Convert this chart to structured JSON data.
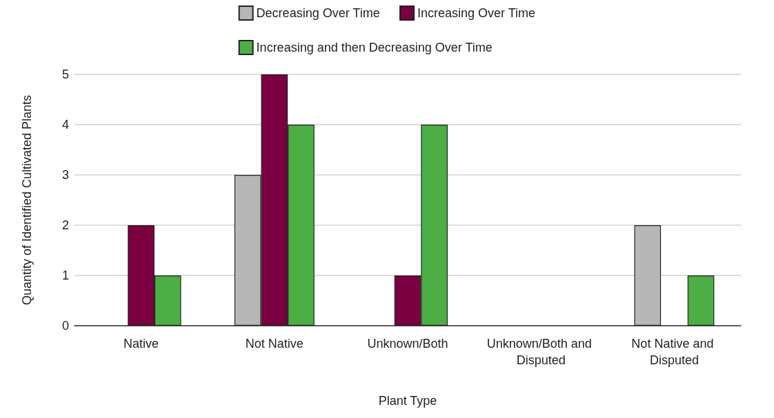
{
  "chart_data": {
    "type": "bar",
    "xlabel": "Plant Type",
    "ylabel": "Quantity of Identified Cultivated Plants",
    "categories": [
      "Native",
      "Not Native",
      "Unknown/Both",
      "Unknown/Both and Disputed",
      "Not Native and Disputed"
    ],
    "series": [
      {
        "name": "Decreasing Over Time",
        "color": "#b7b7b7",
        "values": [
          0,
          3,
          0,
          0,
          2
        ]
      },
      {
        "name": "Increasing Over Time",
        "color": "#7b0041",
        "values": [
          2,
          5,
          1,
          0,
          0
        ]
      },
      {
        "name": "Increasing and then Decreasing Over Time",
        "color": "#4caf45",
        "values": [
          1,
          4,
          4,
          0,
          1
        ]
      }
    ],
    "ylim": [
      0,
      5
    ],
    "yticks": [
      0,
      1,
      2,
      3,
      4,
      5
    ],
    "grid": "y",
    "legend": "top"
  }
}
